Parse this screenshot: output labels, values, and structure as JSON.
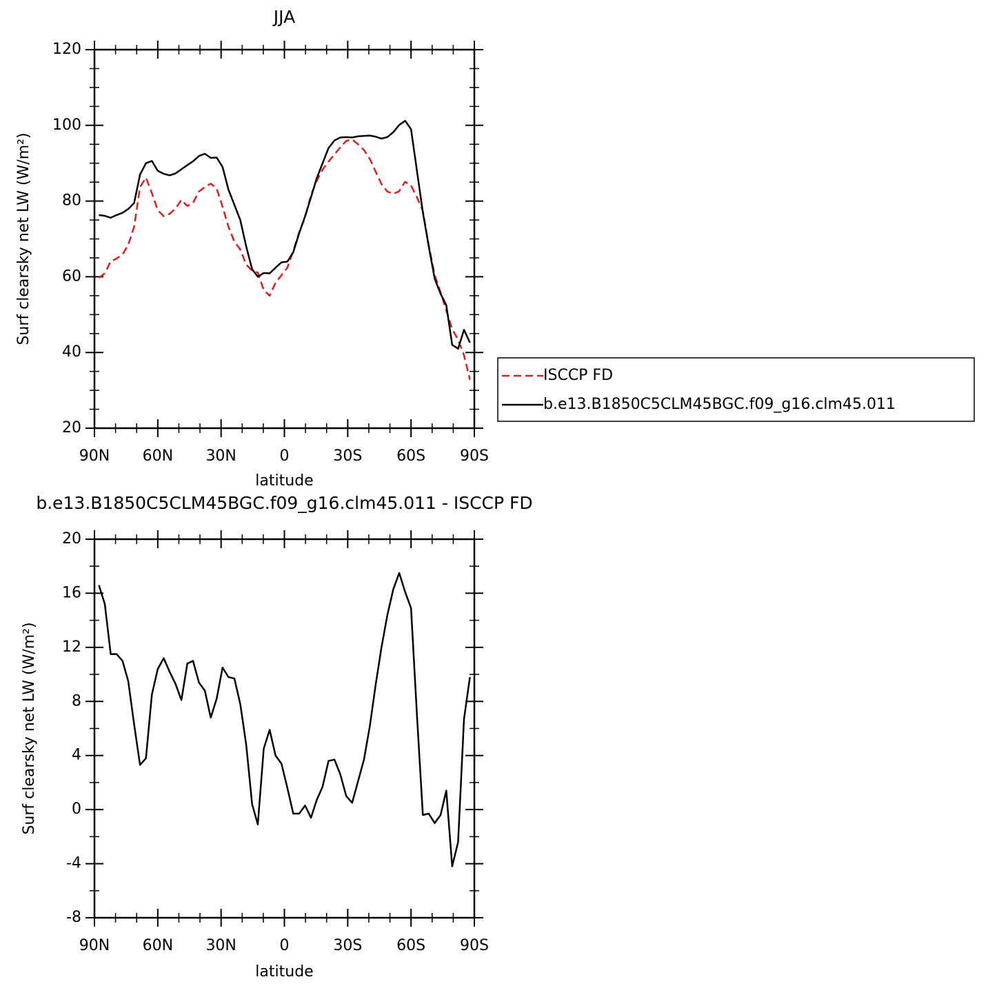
{
  "chart_data": [
    {
      "type": "line",
      "title": "JJA",
      "x_label": "latitude",
      "y_label": "Surf clearsky net LW (W/m²)",
      "x": [
        87.9,
        85.1,
        82.3,
        79.5,
        76.7,
        74.0,
        71.2,
        68.4,
        65.6,
        62.8,
        60.0,
        57.2,
        54.4,
        51.6,
        48.8,
        46.0,
        43.3,
        40.5,
        37.7,
        34.9,
        32.1,
        29.3,
        26.5,
        23.7,
        20.9,
        18.1,
        15.3,
        12.6,
        9.8,
        7.0,
        4.2,
        1.4,
        -1.4,
        -4.2,
        -7.0,
        -9.8,
        -12.6,
        -15.3,
        -18.1,
        -20.9,
        -23.7,
        -26.5,
        -29.3,
        -32.1,
        -34.9,
        -37.7,
        -40.5,
        -43.3,
        -46.0,
        -48.8,
        -51.6,
        -54.4,
        -57.2,
        -60.0,
        -62.8,
        -65.6,
        -68.4,
        -71.2,
        -74.0,
        -76.7,
        -79.5,
        -82.3,
        -85.1,
        -87.9
      ],
      "series": [
        {
          "name": "ISCCP FD",
          "color": "#e41a1c",
          "dash": "dashed",
          "values": [
            59.7,
            60.9,
            64.1,
            64.8,
            65.9,
            68.4,
            73.2,
            83.7,
            86.2,
            82.1,
            77.6,
            76,
            76.6,
            78,
            80.3,
            78.7,
            79.5,
            82.5,
            83.7,
            84.6,
            83.3,
            78.5,
            73.2,
            69.3,
            67.2,
            63.2,
            61.6,
            61.1,
            56.5,
            55,
            58.4,
            60.4,
            62.4,
            66.8,
            71.8,
            75.7,
            81.6,
            85.3,
            88.3,
            90.4,
            92.3,
            94.2,
            95.9,
            96.3,
            95,
            93.5,
            91.1,
            87.7,
            84.5,
            82.5,
            81.9,
            82.6,
            85.1,
            84.1,
            81,
            77.4,
            68.3,
            60.5,
            55.9,
            51.1,
            46.2,
            43.4,
            39.3,
            32.8
          ]
        },
        {
          "name": "b.e13.B1850C5CLM45BGC.f09_g16.clm45.011",
          "color": "#000000",
          "dash": "solid",
          "values": [
            76.3,
            76.1,
            75.6,
            76.3,
            76.9,
            77.9,
            79.5,
            87,
            90,
            90.6,
            88,
            87.2,
            86.8,
            87.3,
            88.4,
            89.5,
            90.5,
            91.9,
            92.5,
            91.4,
            91.5,
            89,
            83,
            79,
            75,
            68,
            62,
            60,
            61,
            60.9,
            62.4,
            63.8,
            64,
            66.5,
            71.5,
            76,
            81,
            86,
            90,
            94,
            96,
            96.8,
            96.9,
            96.8,
            97.1,
            97.2,
            97.3,
            97,
            96.5,
            96.9,
            98.2,
            100.1,
            101.2,
            99,
            88,
            77,
            68,
            59.5,
            55.5,
            52.5,
            42,
            41,
            46,
            42.6
          ]
        }
      ],
      "xlim": [
        90,
        -90
      ],
      "ylim": [
        20,
        120
      ],
      "xticks": [
        {
          "value": 90,
          "label": "90N"
        },
        {
          "value": 60,
          "label": "60N"
        },
        {
          "value": 30,
          "label": "30N"
        },
        0,
        {
          "value": -30,
          "label": "30S"
        },
        {
          "value": -60,
          "label": "60S"
        },
        {
          "value": -90,
          "label": "90S"
        }
      ],
      "yticks": [
        20,
        40,
        60,
        80,
        100,
        120
      ],
      "legend": "outside right"
    },
    {
      "type": "line",
      "title": "b.e13.B1850C5CLM45BGC.f09_g16.clm45.011 - ISCCP FD",
      "x_label": "latitude",
      "y_label": "Surf clearsky net LW (W/m²)",
      "x": [
        87.9,
        85.1,
        82.3,
        79.5,
        76.7,
        74.0,
        71.2,
        68.4,
        65.6,
        62.8,
        60.0,
        57.2,
        54.4,
        51.6,
        48.8,
        46.0,
        43.3,
        40.5,
        37.7,
        34.9,
        32.1,
        29.3,
        26.5,
        23.7,
        20.9,
        18.1,
        15.3,
        12.6,
        9.8,
        7.0,
        4.2,
        1.4,
        -1.4,
        -4.2,
        -7.0,
        -9.8,
        -12.6,
        -15.3,
        -18.1,
        -20.9,
        -23.7,
        -26.5,
        -29.3,
        -32.1,
        -34.9,
        -37.7,
        -40.5,
        -43.3,
        -46.0,
        -48.8,
        -51.6,
        -54.4,
        -57.2,
        -60.0,
        -62.8,
        -65.6,
        -68.4,
        -71.2,
        -74.0,
        -76.7,
        -79.5,
        -82.3,
        -85.1,
        -87.9
      ],
      "series": [
        {
          "color": "#000000",
          "dash": "solid",
          "values": [
            16.6,
            15.2,
            11.5,
            11.5,
            11.0,
            9.5,
            6.3,
            3.3,
            3.8,
            8.5,
            10.4,
            11.2,
            10.2,
            9.3,
            8.1,
            10.8,
            11.0,
            9.4,
            8.8,
            6.8,
            8.2,
            10.5,
            9.8,
            9.7,
            7.8,
            4.8,
            0.4,
            -1.1,
            4.5,
            5.9,
            4.0,
            3.4,
            1.6,
            -0.3,
            -0.3,
            0.3,
            -0.6,
            0.7,
            1.7,
            3.6,
            3.7,
            2.6,
            1.0,
            0.5,
            2.1,
            3.7,
            6.2,
            9.3,
            12.0,
            14.4,
            16.3,
            17.5,
            16.1,
            14.9,
            7.0,
            -0.4,
            -0.3,
            -1.0,
            -0.4,
            1.4,
            -4.2,
            -2.4,
            6.7,
            9.8
          ]
        }
      ],
      "xlim": [
        90,
        -90
      ],
      "ylim": [
        -8,
        20
      ],
      "xticks": [
        {
          "value": 90,
          "label": "90N"
        },
        {
          "value": 60,
          "label": "60N"
        },
        {
          "value": 30,
          "label": "30N"
        },
        0,
        {
          "value": -30,
          "label": "30S"
        },
        {
          "value": -60,
          "label": "60S"
        },
        {
          "value": -90,
          "label": "90S"
        }
      ],
      "yticks": [
        -8,
        -4,
        0,
        4,
        8,
        12,
        16,
        20
      ]
    }
  ]
}
